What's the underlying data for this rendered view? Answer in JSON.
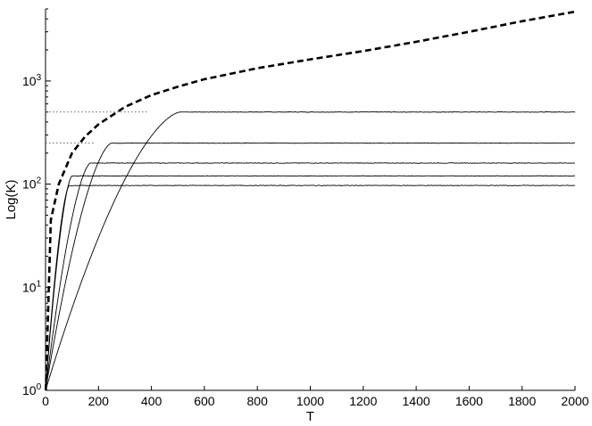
{
  "chart_data": {
    "type": "line",
    "title": "",
    "xlabel": "T",
    "ylabel": "Log(K)",
    "x_scale": "linear",
    "y_scale": "log",
    "xlim": [
      0,
      2000
    ],
    "ylim": [
      1,
      5000
    ],
    "x_ticks": [
      0,
      200,
      400,
      600,
      800,
      1000,
      1200,
      1400,
      1600,
      1800,
      2000
    ],
    "y_ticks": [
      {
        "value": 1,
        "base": "10",
        "exp": "0"
      },
      {
        "value": 10,
        "base": "10",
        "exp": "1"
      },
      {
        "value": 100,
        "base": "10",
        "exp": "2"
      },
      {
        "value": 1000,
        "base": "10",
        "exp": "3"
      }
    ],
    "grid": false,
    "legend": "none",
    "colors": {
      "line": "#000000",
      "reference": "#555555"
    },
    "dashed_curve": {
      "style": "dashed-thick",
      "points": [
        [
          1,
          1
        ],
        [
          20,
          45
        ],
        [
          50,
          100
        ],
        [
          100,
          200
        ],
        [
          150,
          290
        ],
        [
          200,
          380
        ],
        [
          300,
          560
        ],
        [
          400,
          730
        ],
        [
          500,
          880
        ],
        [
          600,
          1040
        ],
        [
          800,
          1330
        ],
        [
          1000,
          1620
        ],
        [
          1200,
          1950
        ],
        [
          1400,
          2400
        ],
        [
          1600,
          3000
        ],
        [
          1800,
          3800
        ],
        [
          2000,
          4700
        ]
      ]
    },
    "saturation_series": [
      {
        "plateau": 500,
        "t_saturation": 510,
        "reference_line": true
      },
      {
        "plateau": 250,
        "t_saturation": 250,
        "reference_line": true
      },
      {
        "plateau": 160,
        "t_saturation": 170,
        "reference_line": false
      },
      {
        "plateau": 120,
        "t_saturation": 100,
        "reference_line": false
      },
      {
        "plateau": 97,
        "t_saturation": 90,
        "reference_line": false
      }
    ]
  }
}
